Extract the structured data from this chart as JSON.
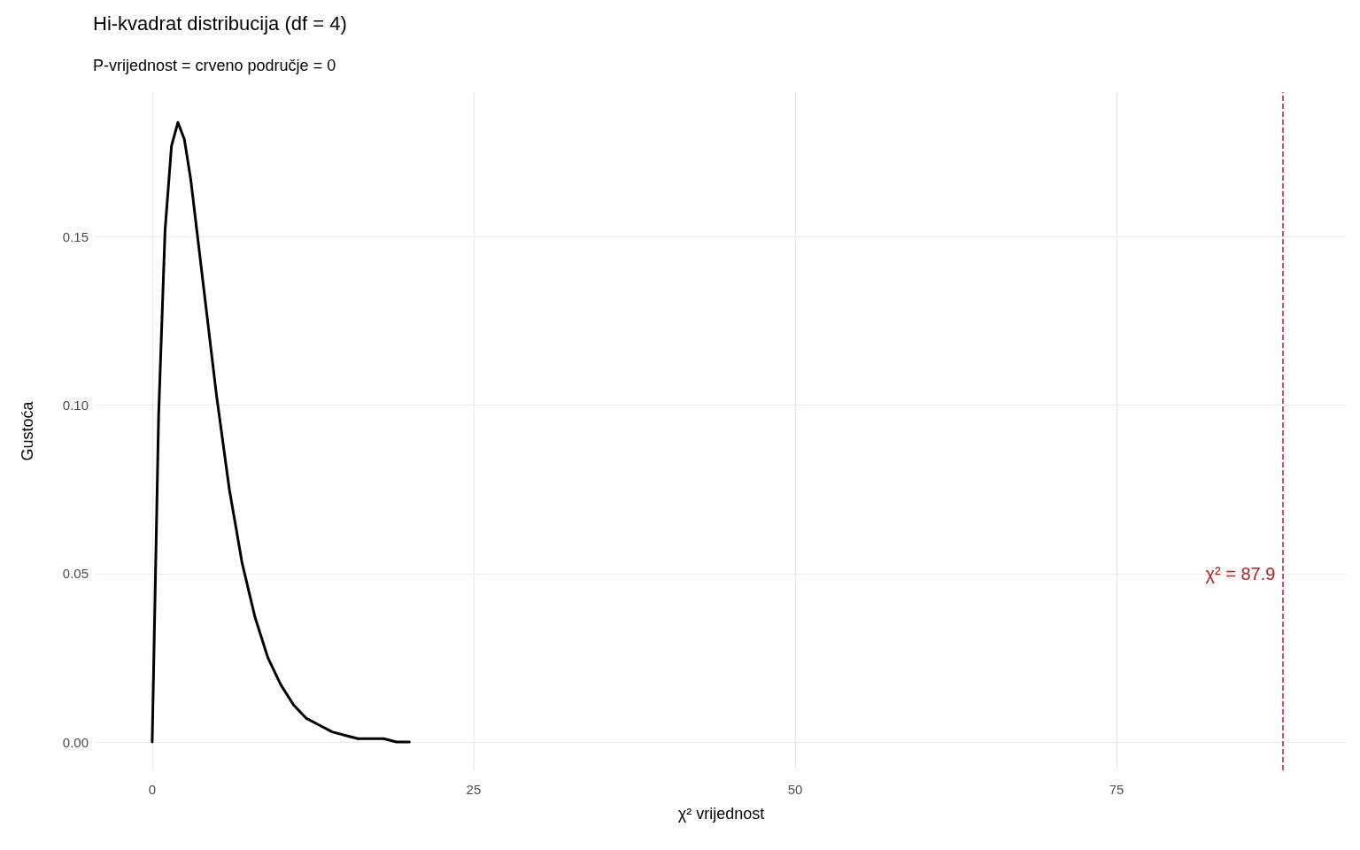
{
  "chart_data": {
    "type": "line",
    "title": "Hi-kvadrat distribucija (df = 4)",
    "subtitle": "P-vrijednost = crveno područje = 0",
    "xlabel": "χ² vrijednost",
    "ylabel": "Gustoća",
    "x": [
      0,
      0.5,
      1,
      1.5,
      2,
      2.5,
      3,
      4,
      5,
      6,
      7,
      8,
      9,
      10,
      11,
      12,
      13,
      14,
      15,
      16,
      17,
      18,
      19,
      20
    ],
    "series": [
      {
        "color": "#000000",
        "values": [
          0,
          0.097,
          0.152,
          0.177,
          0.184,
          0.179,
          0.167,
          0.135,
          0.103,
          0.075,
          0.053,
          0.037,
          0.025,
          0.017,
          0.011,
          0.007,
          0.005,
          0.003,
          0.002,
          0.001,
          0.001,
          0.001,
          0,
          0
        ]
      }
    ],
    "xlim": [
      -4.4,
      92.9
    ],
    "xticks": [
      0,
      25,
      50,
      75
    ],
    "ylim": [
      -0.0084,
      0.193
    ],
    "yticks": [
      {
        "value": 0,
        "label": "0.00"
      },
      0.05,
      {
        "value": 0.1,
        "label": "0.10"
      },
      0.15
    ],
    "ref_lines": [
      {
        "axis": "x",
        "value": 87.9,
        "label": "χ² = 87.9",
        "color": "#b22222",
        "line_style": "dashed"
      }
    ],
    "grid": true,
    "marker": "none",
    "line_style": "solid"
  }
}
